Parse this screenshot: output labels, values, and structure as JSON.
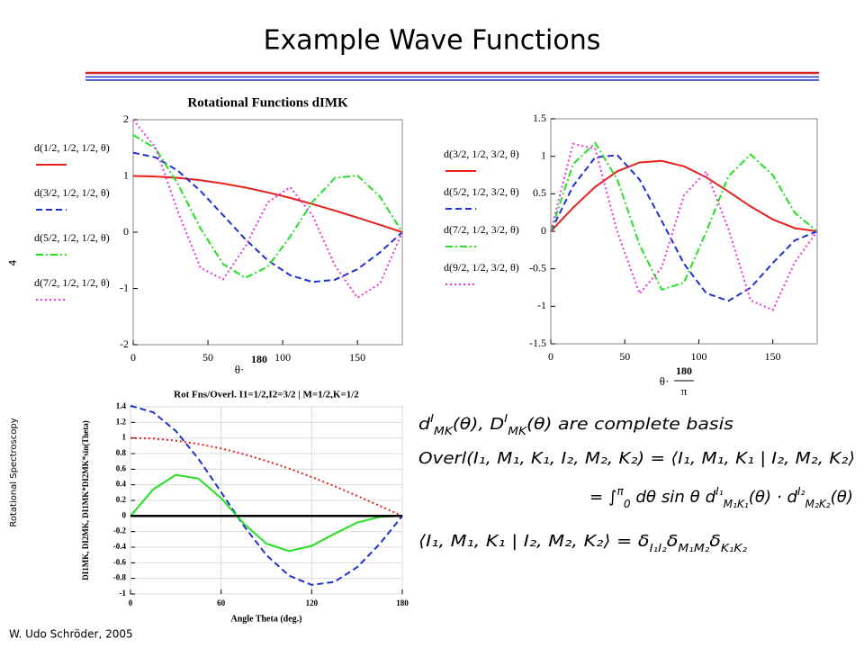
{
  "header": {
    "title": "Example Wave Functions"
  },
  "side": {
    "page": "4",
    "course": "Rotational Spectroscopy"
  },
  "footer": {
    "author": "W. Udo Schröder, 2005"
  },
  "chart_data": [
    {
      "type": "line",
      "title": "Rotational Functions dIMK",
      "x": [
        0,
        15,
        30,
        45,
        60,
        75,
        90,
        105,
        120,
        135,
        150,
        165,
        180
      ],
      "xlim": [
        0,
        180
      ],
      "xticks": [
        0,
        50,
        100,
        150
      ],
      "ylim": [
        -2,
        2
      ],
      "yticks": [
        -2,
        -1,
        0,
        1,
        2
      ],
      "grid": false,
      "x_label": {
        "var": "θ·",
        "num": "180"
      },
      "series": [
        {
          "name": "d(1/2, 1/2, 1/2, θ)",
          "color": "#e8201a",
          "style": "solid",
          "values": [
            1,
            0.991,
            0.966,
            0.924,
            0.866,
            0.793,
            0.707,
            0.609,
            0.5,
            0.383,
            0.259,
            0.131,
            0
          ]
        },
        {
          "name": "d(3/2, 1/2, 1/2, θ)",
          "color": "#1f2fd6",
          "style": "dashed",
          "values": [
            1.414,
            1.33,
            1.091,
            0.733,
            0.306,
            -0.125,
            -0.5,
            -0.765,
            -0.884,
            -0.845,
            -0.658,
            -0.36,
            0
          ]
        },
        {
          "name": "d(5/2, 1/2, 1/2, θ)",
          "color": "#22e022",
          "style": "dashdot",
          "values": [
            1.732,
            1.488,
            0.852,
            0.069,
            -0.563,
            -0.813,
            -0.612,
            -0.078,
            0.541,
            0.966,
            1.005,
            0.633,
            0
          ]
        },
        {
          "name": "d(7/2, 1/2, 1/2, θ)",
          "color": "#f030e0",
          "style": "dotted",
          "values": [
            2,
            1.501,
            0.36,
            -0.633,
            -0.839,
            -0.254,
            0.53,
            0.802,
            0.297,
            -0.599,
            -1.164,
            -0.915,
            0
          ]
        }
      ]
    },
    {
      "type": "line",
      "x": [
        0,
        15,
        30,
        45,
        60,
        75,
        90,
        105,
        120,
        135,
        150,
        165,
        180
      ],
      "xlim": [
        0,
        180
      ],
      "xticks": [
        0,
        50,
        100,
        150
      ],
      "ylim": [
        -1.5,
        1.5
      ],
      "yticks": [
        -1.5,
        -1,
        -0.5,
        0,
        0.5,
        1,
        1.5
      ],
      "grid": false,
      "x_label": {
        "var": "θ·",
        "num": "180",
        "den": "π"
      },
      "series": [
        {
          "name": "d(3/2, 1/2, 3/2, θ)",
          "color": "#e8201a",
          "style": "solid",
          "values": [
            0,
            0.314,
            0.591,
            0.8,
            0.918,
            0.938,
            0.866,
            0.72,
            0.53,
            0.331,
            0.158,
            0.041,
            0
          ]
        },
        {
          "name": "d(5/2, 1/2, 3/2, θ)",
          "color": "#1f2fd6",
          "style": "dashed",
          "values": [
            0,
            0.602,
            0.985,
            1.015,
            0.689,
            0.138,
            -0.433,
            -0.826,
            -0.928,
            -0.752,
            -0.422,
            -0.12,
            0
          ]
        },
        {
          "name": "d(7/2, 1/2, 3/2, θ)",
          "color": "#22e022",
          "style": "dashdot",
          "values": [
            0,
            0.895,
            1.178,
            0.687,
            -0.182,
            -0.779,
            -0.684,
            -0.008,
            0.733,
            1.025,
            0.749,
            0.244,
            0
          ]
        },
        {
          "name": "d(9/2, 1/2, 3/2, θ)",
          "color": "#f030e0",
          "style": "dotted",
          "values": [
            0,
            1.166,
            1.101,
            -0.011,
            -0.832,
            -0.482,
            0.483,
            0.797,
            0.034,
            -0.921,
            -1.049,
            -0.409,
            0
          ]
        }
      ]
    },
    {
      "type": "line",
      "title": "Rot Fns/Overl. I1=1/2,I2=3/2 | M=1/2,K=1/2",
      "x": [
        0,
        15,
        30,
        45,
        60,
        75,
        90,
        105,
        120,
        135,
        150,
        165,
        180
      ],
      "xlim": [
        0,
        180
      ],
      "xticks": [
        0,
        60,
        120,
        180
      ],
      "ylim": [
        -1,
        1.4
      ],
      "yticks": [
        -1,
        -0.8,
        -0.6,
        -0.4,
        -0.2,
        0,
        0.2,
        0.4,
        0.6,
        0.8,
        1,
        1.2,
        1.4
      ],
      "grid": true,
      "x_label": "Angle Theta (deg.)",
      "y_label": "DI1MK, DI2MK, DI1MK*DI2MK*sin(Theta)",
      "series": [
        {
          "color": "#e8201a",
          "style": "dotted",
          "values": [
            1,
            0.991,
            0.966,
            0.924,
            0.866,
            0.793,
            0.707,
            0.609,
            0.5,
            0.383,
            0.259,
            0.131,
            0
          ]
        },
        {
          "color": "#1f2fd6",
          "style": "dashed",
          "values": [
            1.414,
            1.33,
            1.091,
            0.733,
            0.306,
            -0.125,
            -0.5,
            -0.765,
            -0.884,
            -0.845,
            -0.658,
            -0.36,
            0
          ]
        },
        {
          "color": "#22e022",
          "style": "solid",
          "values": [
            0,
            0.341,
            0.527,
            0.479,
            0.229,
            -0.096,
            -0.354,
            -0.45,
            -0.383,
            -0.229,
            -0.085,
            -0.012,
            0
          ]
        },
        {
          "color": "#000000",
          "style": "solid",
          "values": [
            0,
            0,
            0,
            0,
            0,
            0,
            0,
            0,
            0,
            0,
            0,
            0,
            0
          ]
        }
      ]
    }
  ],
  "math": {
    "lines": [
      [
        {
          "t": "d"
        },
        {
          "t": "I",
          "pos": "super"
        },
        {
          "t": "MK",
          "pos": "sub"
        },
        {
          "t": "(θ), D"
        },
        {
          "t": "I",
          "pos": "super"
        },
        {
          "t": "MK",
          "pos": "sub"
        },
        {
          "t": "(θ) are complete basis"
        }
      ],
      [
        {
          "t": "Overl(I₁, M₁, K₁, I₂, M₂, K₂) = ⟨I₁, M₁, K₁ | I₂, M₂, K₂⟩"
        }
      ],
      [
        {
          "t": "= ∫"
        },
        {
          "t": "π",
          "pos": "super"
        },
        {
          "t": "0",
          "pos": "sub"
        },
        {
          "t": " dθ sin θ d"
        },
        {
          "t": "I₁",
          "pos": "super"
        },
        {
          "t": "M₁K₁",
          "pos": "sub"
        },
        {
          "t": "(θ) · d"
        },
        {
          "t": "I₂",
          "pos": "super"
        },
        {
          "t": "M₂K₂",
          "pos": "sub"
        },
        {
          "t": "(θ)"
        }
      ],
      [
        {
          "t": "⟨I₁, M₁, K₁ | I₂, M₂, K₂⟩ = δ"
        },
        {
          "t": "I₁I₂",
          "pos": "sub"
        },
        {
          "t": "δ"
        },
        {
          "t": "M₁M₂",
          "pos": "sub"
        },
        {
          "t": "δ"
        },
        {
          "t": "K₁K₂",
          "pos": "sub"
        }
      ]
    ]
  }
}
